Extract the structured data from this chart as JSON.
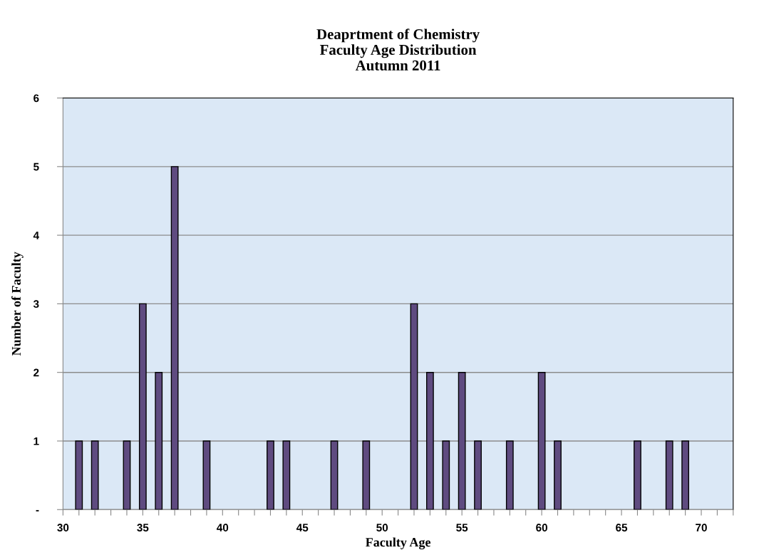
{
  "chart_data": {
    "type": "bar",
    "title": "Deaprtment of Chemistry\nFaculty Age Distribution\nAutumn 2011",
    "xlabel": "Faculty Age",
    "ylabel": "Number of Faculty",
    "x": [
      31,
      32,
      34,
      35,
      36,
      37,
      39,
      43,
      44,
      47,
      49,
      52,
      53,
      54,
      55,
      56,
      58,
      60,
      61,
      66,
      68,
      69
    ],
    "series": [
      {
        "color": "#5f4b80",
        "values": [
          1,
          1,
          1,
          3,
          2,
          5,
          1,
          1,
          1,
          1,
          1,
          3,
          2,
          1,
          2,
          1,
          1,
          2,
          1,
          1,
          1,
          1
        ]
      }
    ],
    "xlim": [
      30,
      72
    ],
    "xticks": [
      30,
      {
        "value": 31,
        "label": null
      },
      {
        "value": 32,
        "label": null
      },
      {
        "value": 33,
        "label": null
      },
      {
        "value": 34,
        "label": null
      },
      35,
      {
        "value": 36,
        "label": null
      },
      {
        "value": 37,
        "label": null
      },
      {
        "value": 38,
        "label": null
      },
      {
        "value": 39,
        "label": null
      },
      40,
      {
        "value": 41,
        "label": null
      },
      {
        "value": 42,
        "label": null
      },
      {
        "value": 43,
        "label": null
      },
      {
        "value": 44,
        "label": null
      },
      45,
      {
        "value": 46,
        "label": null
      },
      {
        "value": 47,
        "label": null
      },
      {
        "value": 48,
        "label": null
      },
      {
        "value": 49,
        "label": null
      },
      50,
      {
        "value": 51,
        "label": null
      },
      {
        "value": 52,
        "label": null
      },
      {
        "value": 53,
        "label": null
      },
      {
        "value": 54,
        "label": null
      },
      55,
      {
        "value": 56,
        "label": null
      },
      {
        "value": 57,
        "label": null
      },
      {
        "value": 58,
        "label": null
      },
      {
        "value": 59,
        "label": null
      },
      60,
      {
        "value": 61,
        "label": null
      },
      {
        "value": 62,
        "label": null
      },
      {
        "value": 63,
        "label": null
      },
      {
        "value": 64,
        "label": null
      },
      65,
      {
        "value": 66,
        "label": null
      },
      {
        "value": 67,
        "label": null
      },
      {
        "value": 68,
        "label": null
      },
      {
        "value": 69,
        "label": null
      },
      70,
      {
        "value": 71,
        "label": null
      },
      {
        "value": 72,
        "label": null
      }
    ],
    "ylim": [
      0,
      6
    ],
    "yticks": [
      {
        "value": 0,
        "label": "-"
      },
      1,
      2,
      3,
      4,
      5,
      6
    ],
    "grid": "y"
  }
}
